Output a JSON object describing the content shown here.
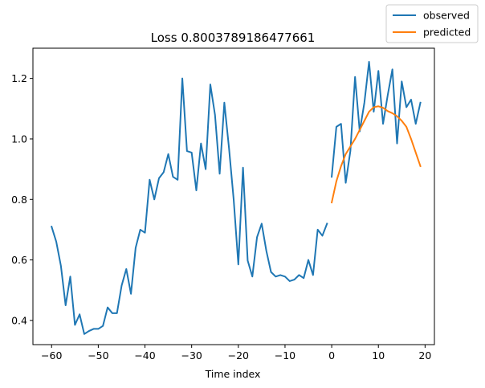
{
  "chart_data": {
    "type": "line",
    "title": "Loss 0.8003789186477661",
    "xlabel": "Time index",
    "ylabel": "",
    "xlim": [
      -64,
      22
    ],
    "ylim": [
      0.32,
      1.3
    ],
    "xticks": [
      -60,
      -50,
      -40,
      -30,
      -20,
      -10,
      0,
      10,
      20
    ],
    "yticks": [
      0.4,
      0.6,
      0.8,
      1.0,
      1.2
    ],
    "grid": false,
    "legend_position": "top-right",
    "series": [
      {
        "name": "observed",
        "color": "#1f77b4",
        "x": [
          -60,
          -59,
          -58,
          -57,
          -56,
          -55,
          -54,
          -53,
          -52,
          -51,
          -50,
          -49,
          -48,
          -47,
          -46,
          -45,
          -44,
          -43,
          -42,
          -41,
          -40,
          -39,
          -38,
          -37,
          -36,
          -35,
          -34,
          -33,
          -32,
          -31,
          -30,
          -29,
          -28,
          -27,
          -26,
          -25,
          -24,
          -23,
          -22,
          -21,
          -20,
          -19,
          -18,
          -17,
          -16,
          -15,
          -14,
          -13,
          -12,
          -11,
          -10,
          -9,
          -8,
          -7,
          -6,
          -5,
          -4,
          -3,
          -2,
          -1
        ],
        "y": [
          0.71,
          0.66,
          0.58,
          0.45,
          0.545,
          0.385,
          0.42,
          0.355,
          0.365,
          0.372,
          0.372,
          0.382,
          0.443,
          0.424,
          0.424,
          0.515,
          0.57,
          0.488,
          0.64,
          0.7,
          0.69,
          0.865,
          0.8,
          0.87,
          0.89,
          0.95,
          0.875,
          0.865,
          1.2,
          0.96,
          0.955,
          0.83,
          0.985,
          0.9,
          1.18,
          1.08,
          0.885,
          1.12,
          0.97,
          0.8,
          0.585,
          0.905,
          0.598,
          0.545,
          0.675,
          0.72,
          0.63,
          0.56,
          0.545,
          0.55,
          0.545,
          0.53,
          0.535,
          0.55,
          0.54,
          0.6,
          0.55,
          0.7,
          0.68,
          0.72
        ]
      },
      {
        "name": "observed",
        "color": "#1f77b4",
        "x": [
          0,
          1,
          2,
          3,
          4,
          5,
          6,
          7,
          8,
          9,
          10,
          11,
          12,
          13,
          14,
          15,
          16,
          17,
          18,
          19
        ],
        "y": [
          0.875,
          1.04,
          1.05,
          0.855,
          0.96,
          1.205,
          1.025,
          1.12,
          1.255,
          1.09,
          1.225,
          1.05,
          1.145,
          1.23,
          0.985,
          1.19,
          1.105,
          1.13,
          1.05,
          1.12
        ]
      },
      {
        "name": "predicted",
        "color": "#ff7f0e",
        "x": [
          0,
          1,
          2,
          3,
          4,
          5,
          6,
          7,
          8,
          9,
          10,
          11,
          12,
          13,
          14,
          15,
          16,
          17,
          18,
          19
        ],
        "y": [
          0.79,
          0.86,
          0.91,
          0.95,
          0.975,
          1.0,
          1.03,
          1.06,
          1.09,
          1.105,
          1.108,
          1.103,
          1.092,
          1.085,
          1.075,
          1.06,
          1.04,
          1.0,
          0.955,
          0.91
        ]
      }
    ]
  },
  "legend": [
    {
      "label": "observed",
      "color": "#1f77b4"
    },
    {
      "label": "predicted",
      "color": "#ff7f0e"
    }
  ]
}
